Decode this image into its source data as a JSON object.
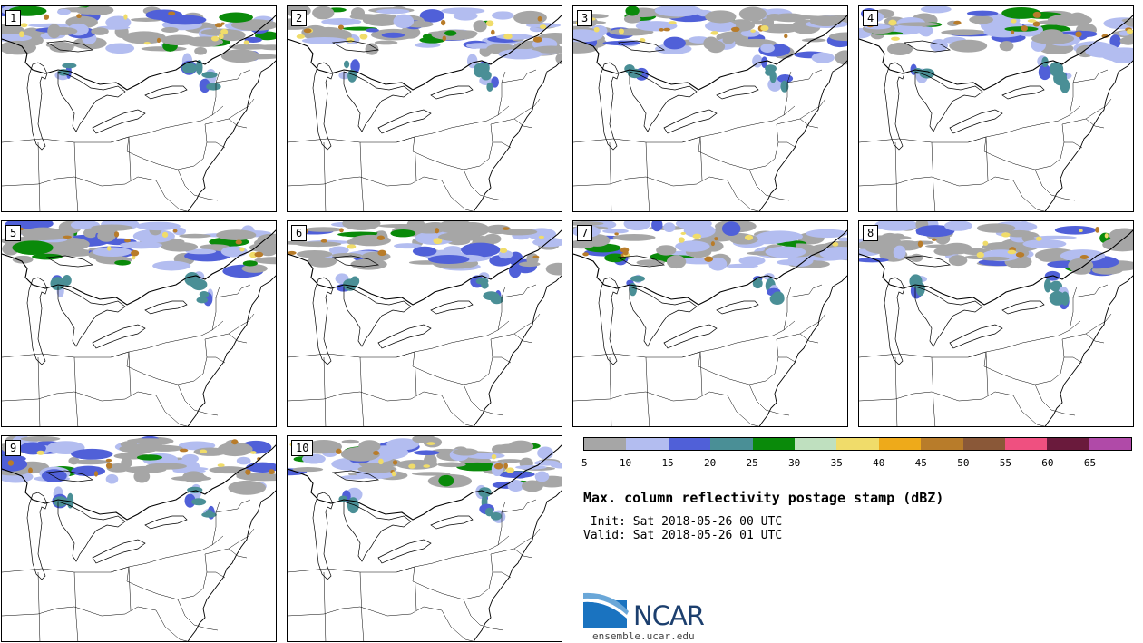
{
  "panels": [
    {
      "label": "1",
      "seed": 3
    },
    {
      "label": "2",
      "seed": 11
    },
    {
      "label": "3",
      "seed": 19
    },
    {
      "label": "4",
      "seed": 27
    },
    {
      "label": "5",
      "seed": 35
    },
    {
      "label": "6",
      "seed": 43
    },
    {
      "label": "7",
      "seed": 51
    },
    {
      "label": "8",
      "seed": 59
    },
    {
      "label": "9",
      "seed": 67
    },
    {
      "label": "10",
      "seed": 75
    }
  ],
  "colorbar": {
    "colors": [
      "#a6a6a6",
      "#b3bdf0",
      "#5060d8",
      "#4a8f96",
      "#0a8a0a",
      "#bfe0bf",
      "#f0dc6a",
      "#eeaa1a",
      "#b87c2a",
      "#8a5838",
      "#ef5080",
      "#6a1a3c",
      "#b04aa8"
    ],
    "ticks": [
      "5",
      "10",
      "15",
      "20",
      "25",
      "30",
      "35",
      "40",
      "45",
      "50",
      "55",
      "60",
      "65"
    ]
  },
  "title": "Max. column reflectivity postage stamp (dBZ)",
  "init": " Init: Sat 2018-05-26 00 UTC",
  "valid": "Valid: Sat 2018-05-26 01 UTC",
  "logo_text": "NCAR",
  "site": "ensemble.ucar.edu"
}
